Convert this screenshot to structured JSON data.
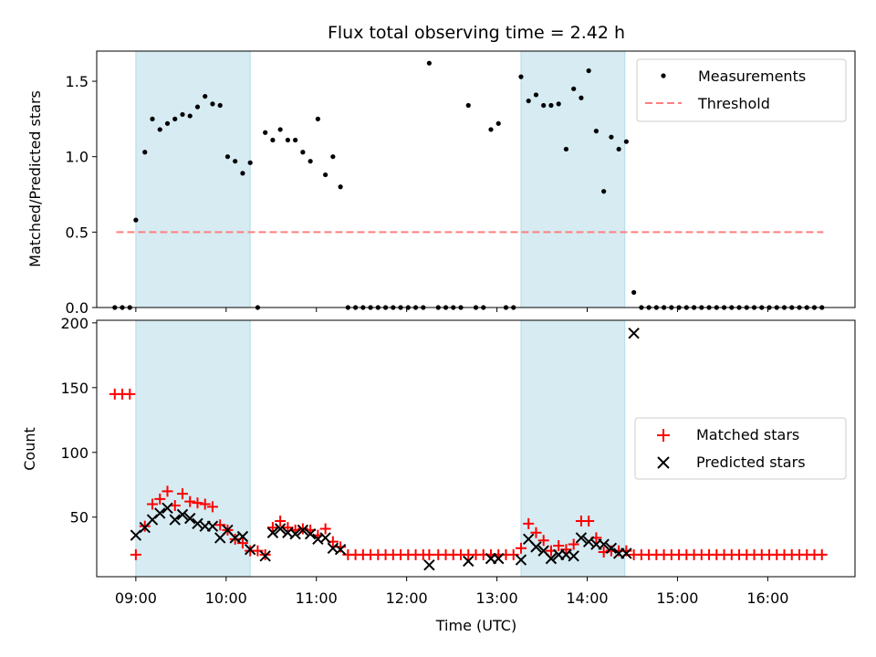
{
  "chart_data": [
    {
      "type": "scatter",
      "title": "Flux total observing time = 2.42 h",
      "xlabel": "",
      "ylabel": "Matched/Predicted stars",
      "xlim": [
        "08:34",
        "16:58"
      ],
      "ylim": [
        0,
        1.7
      ],
      "yticks": [
        0.0,
        0.5,
        1.0,
        1.5
      ],
      "ytick_labels": [
        "0.0",
        "0.5",
        "1.0",
        "1.5"
      ],
      "legend": "top-right",
      "shaded_spans": [
        [
          "09:00",
          "10:16"
        ],
        [
          "13:16",
          "14:25"
        ]
      ],
      "shade_color": "#add8e6",
      "threshold": {
        "name": "Threshold",
        "value": 0.5,
        "x": [
          "08:47",
          "16:37"
        ],
        "color": "#ff7f7f",
        "style": "dashed"
      },
      "series": [
        {
          "name": "Measurements",
          "color": "#000000",
          "marker": "dot",
          "points": [
            [
              "08:46",
              0
            ],
            [
              "08:51",
              0
            ],
            [
              "08:56",
              0
            ],
            [
              "09:00",
              0.58
            ],
            [
              "09:06",
              1.03
            ],
            [
              "09:11",
              1.25
            ],
            [
              "09:16",
              1.18
            ],
            [
              "09:21",
              1.22
            ],
            [
              "09:26",
              1.25
            ],
            [
              "09:31",
              1.28
            ],
            [
              "09:36",
              1.27
            ],
            [
              "09:41",
              1.33
            ],
            [
              "09:46",
              1.4
            ],
            [
              "09:51",
              1.35
            ],
            [
              "09:56",
              1.34
            ],
            [
              "10:01",
              1.0
            ],
            [
              "10:06",
              0.97
            ],
            [
              "10:11",
              0.89
            ],
            [
              "10:16",
              0.96
            ],
            [
              "10:21",
              0
            ],
            [
              "10:26",
              1.16
            ],
            [
              "10:31",
              1.11
            ],
            [
              "10:36",
              1.18
            ],
            [
              "10:41",
              1.11
            ],
            [
              "10:46",
              1.11
            ],
            [
              "10:51",
              1.03
            ],
            [
              "10:56",
              0.97
            ],
            [
              "11:01",
              1.25
            ],
            [
              "11:06",
              0.88
            ],
            [
              "11:11",
              1.0
            ],
            [
              "11:16",
              0.8
            ],
            [
              "11:21",
              0
            ],
            [
              "11:26",
              0
            ],
            [
              "11:31",
              0
            ],
            [
              "11:36",
              0
            ],
            [
              "11:41",
              0
            ],
            [
              "11:46",
              0
            ],
            [
              "11:51",
              0
            ],
            [
              "11:56",
              0
            ],
            [
              "12:01",
              0
            ],
            [
              "12:06",
              0
            ],
            [
              "12:11",
              0
            ],
            [
              "12:15",
              1.62
            ],
            [
              "12:21",
              0
            ],
            [
              "12:26",
              0
            ],
            [
              "12:31",
              0
            ],
            [
              "12:36",
              0
            ],
            [
              "12:41",
              1.34
            ],
            [
              "12:46",
              0
            ],
            [
              "12:51",
              0
            ],
            [
              "12:56",
              1.18
            ],
            [
              "13:01",
              1.22
            ],
            [
              "13:06",
              0
            ],
            [
              "13:11",
              0
            ],
            [
              "13:16",
              1.53
            ],
            [
              "13:21",
              1.37
            ],
            [
              "13:26",
              1.41
            ],
            [
              "13:31",
              1.34
            ],
            [
              "13:36",
              1.34
            ],
            [
              "13:41",
              1.35
            ],
            [
              "13:46",
              1.05
            ],
            [
              "13:51",
              1.45
            ],
            [
              "13:56",
              1.39
            ],
            [
              "14:01",
              1.57
            ],
            [
              "14:06",
              1.17
            ],
            [
              "14:11",
              0.77
            ],
            [
              "14:16",
              1.13
            ],
            [
              "14:21",
              1.05
            ],
            [
              "14:26",
              1.1
            ],
            [
              "14:31",
              0.1
            ],
            [
              "14:36",
              0
            ],
            [
              "14:41",
              0
            ],
            [
              "14:46",
              0
            ],
            [
              "14:51",
              0
            ],
            [
              "14:56",
              0
            ],
            [
              "15:01",
              0
            ],
            [
              "15:06",
              0
            ],
            [
              "15:11",
              0
            ],
            [
              "15:16",
              0
            ],
            [
              "15:21",
              0
            ],
            [
              "15:26",
              0
            ],
            [
              "15:31",
              0
            ],
            [
              "15:36",
              0
            ],
            [
              "15:41",
              0
            ],
            [
              "15:46",
              0
            ],
            [
              "15:51",
              0
            ],
            [
              "15:56",
              0
            ],
            [
              "16:01",
              0
            ],
            [
              "16:06",
              0
            ],
            [
              "16:11",
              0
            ],
            [
              "16:16",
              0
            ],
            [
              "16:21",
              0
            ],
            [
              "16:26",
              0
            ],
            [
              "16:31",
              0
            ],
            [
              "16:36",
              0
            ]
          ]
        }
      ]
    },
    {
      "type": "scatter",
      "title": "",
      "xlabel": "Time (UTC)",
      "ylabel": "Count",
      "xlim": [
        "08:34",
        "16:58"
      ],
      "ylim": [
        4,
        202
      ],
      "xticks": [
        "09:00",
        "10:00",
        "11:00",
        "12:00",
        "13:00",
        "14:00",
        "15:00",
        "16:00"
      ],
      "yticks": [
        50,
        100,
        150,
        200
      ],
      "ytick_labels": [
        "50",
        "100",
        "150",
        "200"
      ],
      "legend": "center-right",
      "shaded_spans": [
        [
          "09:00",
          "10:16"
        ],
        [
          "13:16",
          "14:25"
        ]
      ],
      "shade_color": "#add8e6",
      "series": [
        {
          "name": "Matched stars",
          "color": "#ff0000",
          "marker": "plus",
          "points": [
            [
              "08:46",
              145
            ],
            [
              "08:51",
              145
            ],
            [
              "08:56",
              145
            ],
            [
              "09:00",
              21
            ],
            [
              "09:06",
              43
            ],
            [
              "09:11",
              60
            ],
            [
              "09:16",
              64
            ],
            [
              "09:21",
              70
            ],
            [
              "09:26",
              59
            ],
            [
              "09:31",
              68
            ],
            [
              "09:36",
              62
            ],
            [
              "09:41",
              61
            ],
            [
              "09:46",
              60
            ],
            [
              "09:51",
              58
            ],
            [
              "09:56",
              44
            ],
            [
              "10:01",
              40
            ],
            [
              "10:06",
              33
            ],
            [
              "10:11",
              30
            ],
            [
              "10:16",
              24
            ],
            [
              "10:21",
              24
            ],
            [
              "10:26",
              21
            ],
            [
              "10:31",
              42
            ],
            [
              "10:36",
              47
            ],
            [
              "10:41",
              42
            ],
            [
              "10:46",
              40
            ],
            [
              "10:51",
              41
            ],
            [
              "10:56",
              40
            ],
            [
              "11:01",
              36
            ],
            [
              "11:06",
              41
            ],
            [
              "11:11",
              31
            ],
            [
              "11:16",
              27
            ],
            [
              "11:21",
              21
            ],
            [
              "11:26",
              21
            ],
            [
              "11:31",
              21
            ],
            [
              "11:36",
              21
            ],
            [
              "11:41",
              21
            ],
            [
              "11:46",
              21
            ],
            [
              "11:51",
              21
            ],
            [
              "11:56",
              21
            ],
            [
              "12:01",
              21
            ],
            [
              "12:06",
              21
            ],
            [
              "12:11",
              21
            ],
            [
              "12:15",
              21
            ],
            [
              "12:21",
              21
            ],
            [
              "12:26",
              21
            ],
            [
              "12:31",
              21
            ],
            [
              "12:36",
              21
            ],
            [
              "12:41",
              21
            ],
            [
              "12:46",
              21
            ],
            [
              "12:51",
              21
            ],
            [
              "12:56",
              21
            ],
            [
              "13:01",
              21
            ],
            [
              "13:06",
              21
            ],
            [
              "13:11",
              21
            ],
            [
              "13:16",
              26
            ],
            [
              "13:21",
              45
            ],
            [
              "13:26",
              38
            ],
            [
              "13:31",
              32
            ],
            [
              "13:36",
              24
            ],
            [
              "13:41",
              28
            ],
            [
              "13:46",
              25
            ],
            [
              "13:51",
              29
            ],
            [
              "13:56",
              47
            ],
            [
              "14:01",
              47
            ],
            [
              "14:06",
              34
            ],
            [
              "14:11",
              23
            ],
            [
              "14:16",
              24
            ],
            [
              "14:21",
              24
            ],
            [
              "14:26",
              24
            ],
            [
              "14:31",
              21
            ],
            [
              "14:36",
              21
            ],
            [
              "14:41",
              21
            ],
            [
              "14:46",
              21
            ],
            [
              "14:51",
              21
            ],
            [
              "14:56",
              21
            ],
            [
              "15:01",
              21
            ],
            [
              "15:06",
              21
            ],
            [
              "15:11",
              21
            ],
            [
              "15:16",
              21
            ],
            [
              "15:21",
              21
            ],
            [
              "15:26",
              21
            ],
            [
              "15:31",
              21
            ],
            [
              "15:36",
              21
            ],
            [
              "15:41",
              21
            ],
            [
              "15:46",
              21
            ],
            [
              "15:51",
              21
            ],
            [
              "15:56",
              21
            ],
            [
              "16:01",
              21
            ],
            [
              "16:06",
              21
            ],
            [
              "16:11",
              21
            ],
            [
              "16:16",
              21
            ],
            [
              "16:21",
              21
            ],
            [
              "16:26",
              21
            ],
            [
              "16:31",
              21
            ],
            [
              "16:36",
              21
            ]
          ]
        },
        {
          "name": "Predicted stars",
          "color": "#000000",
          "marker": "x",
          "points": [
            [
              "09:00",
              36
            ],
            [
              "09:06",
              42
            ],
            [
              "09:11",
              48
            ],
            [
              "09:16",
              53
            ],
            [
              "09:21",
              57
            ],
            [
              "09:26",
              48
            ],
            [
              "09:31",
              52
            ],
            [
              "09:36",
              49
            ],
            [
              "09:41",
              45
            ],
            [
              "09:46",
              43
            ],
            [
              "09:51",
              43
            ],
            [
              "09:56",
              34
            ],
            [
              "10:01",
              40
            ],
            [
              "10:06",
              34
            ],
            [
              "10:11",
              35
            ],
            [
              "10:16",
              25
            ],
            [
              "10:26",
              20
            ],
            [
              "10:31",
              38
            ],
            [
              "10:36",
              41
            ],
            [
              "10:41",
              38
            ],
            [
              "10:46",
              37
            ],
            [
              "10:51",
              40
            ],
            [
              "10:56",
              37
            ],
            [
              "11:01",
              33
            ],
            [
              "11:06",
              34
            ],
            [
              "11:11",
              26
            ],
            [
              "11:16",
              25
            ],
            [
              "12:15",
              13
            ],
            [
              "12:41",
              16
            ],
            [
              "12:56",
              18
            ],
            [
              "13:01",
              18
            ],
            [
              "13:16",
              17
            ],
            [
              "13:21",
              33
            ],
            [
              "13:26",
              27
            ],
            [
              "13:31",
              24
            ],
            [
              "13:36",
              18
            ],
            [
              "13:41",
              21
            ],
            [
              "13:46",
              21
            ],
            [
              "13:51",
              20
            ],
            [
              "13:56",
              34
            ],
            [
              "14:01",
              31
            ],
            [
              "14:06",
              29
            ],
            [
              "14:11",
              29
            ],
            [
              "14:16",
              26
            ],
            [
              "14:21",
              22
            ],
            [
              "14:26",
              22
            ],
            [
              "14:31",
              192
            ]
          ]
        }
      ]
    }
  ]
}
